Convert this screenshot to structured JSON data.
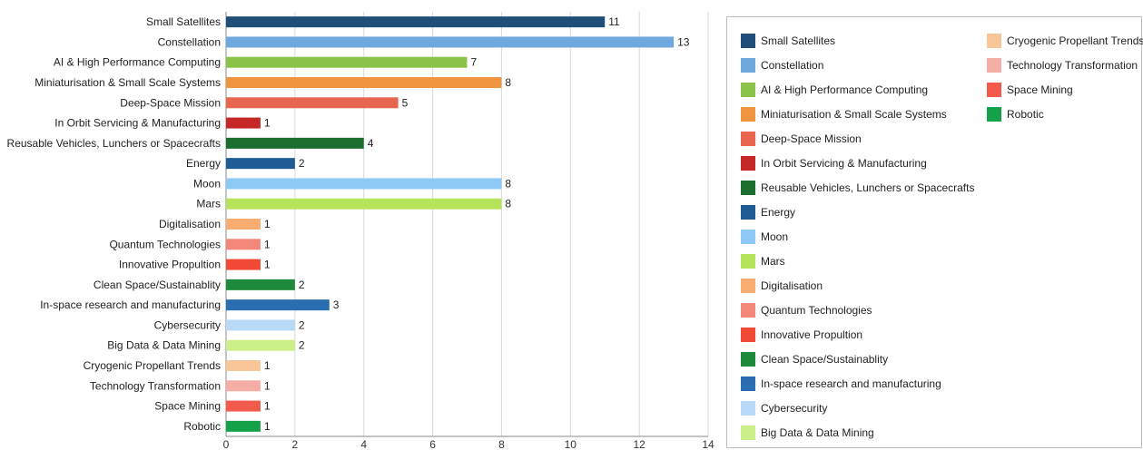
{
  "chart_data": {
    "type": "bar",
    "orientation": "horizontal",
    "categories": [
      "Small Satellites",
      "Constellation",
      "AI & High Performance Computing",
      "Miniaturisation & Small Scale Systems",
      "Deep-Space Mission",
      "In Orbit Servicing & Manufacturing",
      "Reusable Vehicles, Lunchers or Spacecrafts",
      "Energy",
      "Moon",
      "Mars",
      "Digitalisation",
      "Quantum Technologies",
      "Innovative Propultion",
      "Clean Space/Sustainablity",
      "In-space research and manufacturing",
      "Cybersecurity",
      "Big Data & Data Mining",
      "Cryogenic Propellant Trends",
      "Technology Transformation",
      "Space Mining",
      "Robotic"
    ],
    "values": [
      11,
      13,
      7,
      8,
      5,
      1,
      4,
      2,
      8,
      8,
      1,
      1,
      1,
      2,
      3,
      2,
      2,
      1,
      1,
      1,
      1
    ],
    "colors": [
      "#1f4e79",
      "#6fa8dc",
      "#8bc34a",
      "#f0953f",
      "#e86550",
      "#c62828",
      "#1b6e2e",
      "#1f5c96",
      "#8ec9f6",
      "#b5e35a",
      "#f7ad72",
      "#f3877a",
      "#f04a35",
      "#1e8a3c",
      "#2a6db0",
      "#b8daf7",
      "#cdef8a",
      "#f9c69a",
      "#f6ada6",
      "#f25a4b",
      "#15a04a"
    ],
    "xlim": [
      0,
      14
    ],
    "xticks": [
      0,
      2,
      4,
      6,
      8,
      10,
      12,
      14
    ],
    "grid": true,
    "legend_position": "right",
    "legend_columns": [
      [
        "Small Satellites",
        "Constellation",
        "AI & High Performance Computing",
        "Miniaturisation & Small Scale Systems",
        "Deep-Space Mission",
        "In Orbit Servicing & Manufacturing",
        "Reusable Vehicles, Lunchers or Spacecrafts",
        "Energy",
        "Moon",
        "Mars",
        "Digitalisation",
        "Quantum Technologies",
        "Innovative Propultion",
        "Clean Space/Sustainablity",
        "In-space research and manufacturing",
        "Cybersecurity",
        "Big Data & Data Mining"
      ],
      [
        "Cryogenic Propellant Trends",
        "Technology Transformation",
        "Space Mining",
        "Robotic"
      ]
    ]
  }
}
